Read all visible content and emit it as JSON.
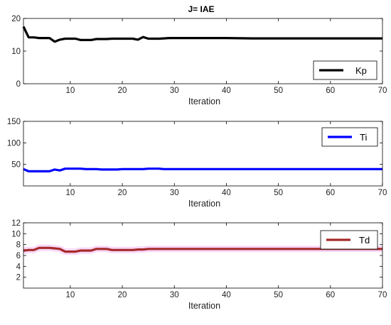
{
  "figure": {
    "title": "J= IAE"
  },
  "chart_data": [
    {
      "type": "line",
      "title": "J= IAE",
      "xlabel": "Iteration",
      "ylabel": "",
      "xlim": [
        1,
        70
      ],
      "ylim": [
        0,
        20
      ],
      "xticks": [
        10,
        20,
        30,
        40,
        50,
        60,
        70
      ],
      "yticks": [
        0,
        10,
        20
      ],
      "grid": false,
      "legend_position": "bottom-right",
      "series": [
        {
          "name": "Kp",
          "color": "#000000",
          "x": [
            1,
            2,
            3,
            4,
            5,
            6,
            7,
            8,
            9,
            10,
            11,
            12,
            13,
            14,
            15,
            16,
            17,
            18,
            19,
            20,
            21,
            22,
            23,
            24,
            25,
            26,
            27,
            28,
            29,
            30,
            35,
            40,
            45,
            50,
            55,
            60,
            65,
            70
          ],
          "y": [
            17.5,
            14.2,
            14.2,
            14.0,
            14.0,
            14.0,
            12.9,
            13.5,
            13.8,
            13.8,
            13.8,
            13.4,
            13.4,
            13.4,
            13.7,
            13.7,
            13.7,
            13.8,
            13.8,
            13.8,
            13.8,
            13.8,
            13.5,
            14.3,
            13.8,
            13.8,
            13.8,
            13.9,
            14.0,
            14.0,
            14.0,
            14.0,
            13.9,
            13.9,
            13.9,
            13.9,
            13.9,
            13.9
          ]
        }
      ]
    },
    {
      "type": "line",
      "title": "",
      "xlabel": "Iteration",
      "ylabel": "",
      "xlim": [
        1,
        70
      ],
      "ylim": [
        0,
        150
      ],
      "xticks": [
        10,
        20,
        30,
        40,
        50,
        60,
        70
      ],
      "yticks": [
        50,
        100,
        150
      ],
      "grid": false,
      "legend_position": "top-right",
      "series": [
        {
          "name": "Ti",
          "color": "#0000ff",
          "x": [
            1,
            2,
            3,
            4,
            5,
            6,
            7,
            8,
            9,
            10,
            11,
            12,
            13,
            14,
            15,
            16,
            17,
            18,
            19,
            20,
            21,
            22,
            23,
            24,
            25,
            26,
            27,
            28,
            29,
            30,
            35,
            40,
            45,
            50,
            55,
            60,
            65,
            70
          ],
          "y": [
            39,
            34,
            34,
            34,
            34,
            34,
            38,
            36,
            40,
            40,
            40,
            40,
            39,
            39,
            39,
            38,
            38,
            38,
            38,
            39,
            39,
            39,
            39,
            39,
            40,
            40,
            40,
            39,
            39,
            39,
            39,
            39,
            39,
            39,
            39,
            39,
            39,
            39
          ]
        }
      ]
    },
    {
      "type": "line",
      "title": "",
      "xlabel": "Iteration",
      "ylabel": "",
      "xlim": [
        1,
        70
      ],
      "ylim": [
        0,
        12
      ],
      "xticks": [
        10,
        20,
        30,
        40,
        50,
        60,
        70
      ],
      "yticks": [
        2,
        4,
        6,
        8,
        10,
        12
      ],
      "grid": false,
      "legend_position": "top-right",
      "series": [
        {
          "name": "Td",
          "color": "#a52a2a",
          "x": [
            1,
            2,
            3,
            4,
            5,
            6,
            7,
            8,
            9,
            10,
            11,
            12,
            13,
            14,
            15,
            16,
            17,
            18,
            19,
            20,
            21,
            22,
            23,
            24,
            25,
            26,
            27,
            28,
            29,
            30,
            35,
            40,
            45,
            50,
            55,
            60,
            65,
            70
          ],
          "y": [
            6.9,
            7.0,
            7.0,
            7.4,
            7.4,
            7.4,
            7.3,
            7.2,
            6.7,
            6.7,
            6.7,
            6.9,
            6.9,
            6.9,
            7.2,
            7.2,
            7.2,
            7.0,
            7.0,
            7.0,
            7.0,
            7.0,
            7.1,
            7.1,
            7.2,
            7.2,
            7.2,
            7.2,
            7.2,
            7.2,
            7.2,
            7.2,
            7.2,
            7.2,
            7.2,
            7.2,
            7.2,
            7.2
          ]
        }
      ]
    }
  ]
}
